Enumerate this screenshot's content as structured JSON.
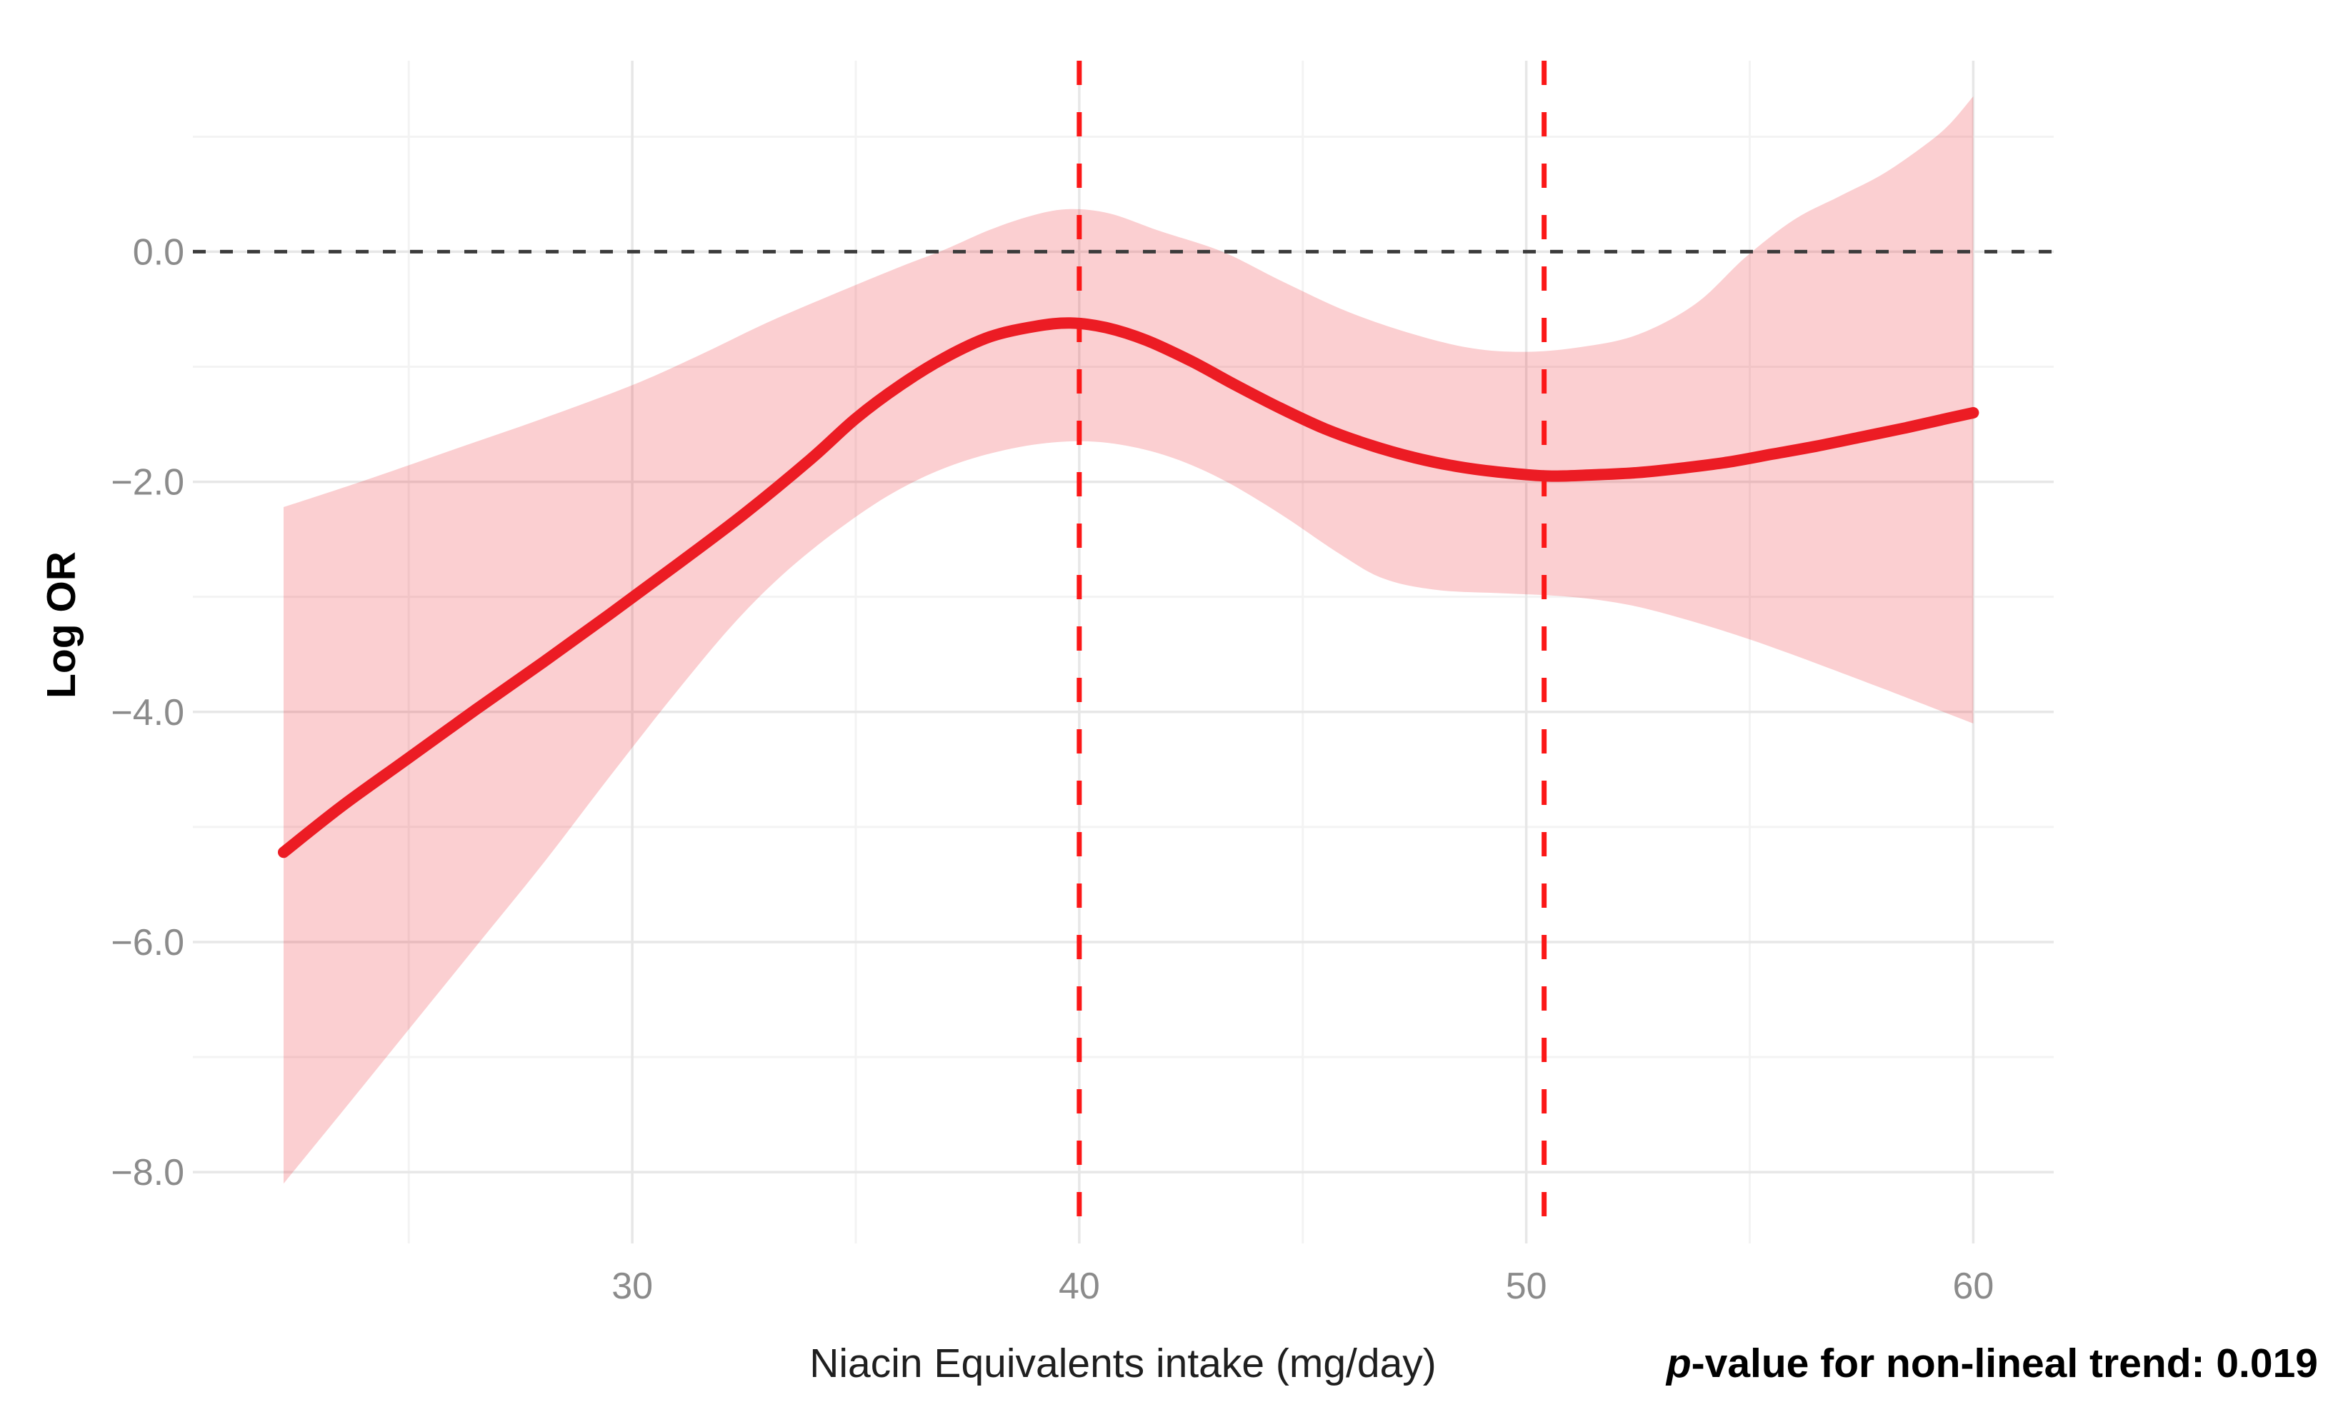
{
  "chart_data": {
    "type": "line",
    "title": "",
    "xlabel": "Niacin Equivalents intake (mg/day)",
    "ylabel": "Log OR",
    "x_ticks": {
      "values": [
        30,
        40,
        50,
        60
      ],
      "labels": [
        "30",
        "40",
        "50",
        "60"
      ]
    },
    "y_ticks": {
      "values": [
        0,
        -2,
        -4,
        -6,
        -8
      ],
      "labels": [
        "0.0",
        "−2.0",
        "−4.0",
        "−6.0",
        "−8.0"
      ]
    },
    "x_minor_ticks": [
      25,
      35,
      45,
      55
    ],
    "y_minor_ticks": [
      1,
      -1,
      -3,
      -5,
      -7
    ],
    "xlim": [
      20.17,
      61.8
    ],
    "ylim": [
      -8.62,
      1.66
    ],
    "grid": "on",
    "legend": "none",
    "series": [
      {
        "name": "log-or-spline",
        "role": "mean",
        "values": [
          [
            22.2,
            -5.22
          ],
          [
            23.5,
            -4.82
          ],
          [
            25,
            -4.4
          ],
          [
            26.5,
            -3.98
          ],
          [
            28,
            -3.57
          ],
          [
            29.5,
            -3.15
          ],
          [
            31,
            -2.72
          ],
          [
            32.5,
            -2.28
          ],
          [
            34,
            -1.8
          ],
          [
            35,
            -1.45
          ],
          [
            36,
            -1.16
          ],
          [
            37,
            -0.92
          ],
          [
            38,
            -0.74
          ],
          [
            39,
            -0.65
          ],
          [
            39.8,
            -0.62
          ],
          [
            40.6,
            -0.66
          ],
          [
            41.5,
            -0.77
          ],
          [
            42.5,
            -0.95
          ],
          [
            43.5,
            -1.16
          ],
          [
            44.5,
            -1.36
          ],
          [
            45.5,
            -1.54
          ],
          [
            46.5,
            -1.68
          ],
          [
            47.5,
            -1.79
          ],
          [
            48.5,
            -1.87
          ],
          [
            49.5,
            -1.92
          ],
          [
            50.5,
            -1.95
          ],
          [
            51.5,
            -1.94
          ],
          [
            52.5,
            -1.92
          ],
          [
            53.5,
            -1.88
          ],
          [
            54.5,
            -1.83
          ],
          [
            55.5,
            -1.76
          ],
          [
            56.5,
            -1.69
          ],
          [
            57.5,
            -1.61
          ],
          [
            58.5,
            -1.53
          ],
          [
            59.3,
            -1.46
          ],
          [
            60,
            -1.4
          ]
        ]
      },
      {
        "name": "ci-upper",
        "role": "ci_upper",
        "values": [
          [
            22.2,
            -2.22
          ],
          [
            24,
            -1.99
          ],
          [
            26,
            -1.72
          ],
          [
            28,
            -1.45
          ],
          [
            30,
            -1.16
          ],
          [
            31.5,
            -0.9
          ],
          [
            33,
            -0.62
          ],
          [
            34.5,
            -0.37
          ],
          [
            36,
            -0.13
          ],
          [
            37,
            0.02
          ],
          [
            38,
            0.19
          ],
          [
            39,
            0.32
          ],
          [
            39.8,
            0.37
          ],
          [
            40.7,
            0.33
          ],
          [
            41.8,
            0.18
          ],
          [
            43.2,
            0
          ],
          [
            44.5,
            -0.25
          ],
          [
            46,
            -0.52
          ],
          [
            47.5,
            -0.72
          ],
          [
            48.8,
            -0.84
          ],
          [
            50,
            -0.87
          ],
          [
            51.2,
            -0.83
          ],
          [
            52.5,
            -0.72
          ],
          [
            53.8,
            -0.45
          ],
          [
            54.9,
            -0.05
          ],
          [
            56,
            0.28
          ],
          [
            57,
            0.48
          ],
          [
            58,
            0.68
          ],
          [
            59,
            0.95
          ],
          [
            59.5,
            1.12
          ],
          [
            60,
            1.35
          ]
        ]
      },
      {
        "name": "ci-lower",
        "role": "ci_lower",
        "values": [
          [
            22.2,
            -8.1
          ],
          [
            23.5,
            -7.48
          ],
          [
            25,
            -6.76
          ],
          [
            26.5,
            -6.04
          ],
          [
            28,
            -5.32
          ],
          [
            29.5,
            -4.56
          ],
          [
            31,
            -3.82
          ],
          [
            32.3,
            -3.22
          ],
          [
            33.5,
            -2.76
          ],
          [
            34.8,
            -2.36
          ],
          [
            36,
            -2.06
          ],
          [
            37.2,
            -1.85
          ],
          [
            38.5,
            -1.71
          ],
          [
            39.7,
            -1.65
          ],
          [
            40.8,
            -1.67
          ],
          [
            42,
            -1.78
          ],
          [
            43.2,
            -1.98
          ],
          [
            44.5,
            -2.28
          ],
          [
            45.8,
            -2.62
          ],
          [
            46.8,
            -2.84
          ],
          [
            48,
            -2.94
          ],
          [
            49.5,
            -2.97
          ],
          [
            51,
            -3
          ],
          [
            52.3,
            -3.07
          ],
          [
            53.6,
            -3.2
          ],
          [
            55,
            -3.37
          ],
          [
            56.5,
            -3.58
          ],
          [
            58,
            -3.8
          ],
          [
            59,
            -3.95
          ],
          [
            60,
            -4.1
          ]
        ]
      }
    ],
    "reference_lines": {
      "horizontal": [
        0
      ],
      "vertical": [
        40,
        50.4
      ]
    },
    "annotation": {
      "p_italic": "p",
      "text": "-value for non-lineal trend: 0.019"
    },
    "colors": {
      "curve": "#ec1c24",
      "band": "rgba(236,28,36,0.21)",
      "vline": "#fb1717",
      "hline": "#3b3b3b",
      "grid_major": "#e7e7e7",
      "grid_minor": "#f3f3f3",
      "tick_text": "#8b8b8b",
      "title_text": "#1f1f1f"
    }
  }
}
